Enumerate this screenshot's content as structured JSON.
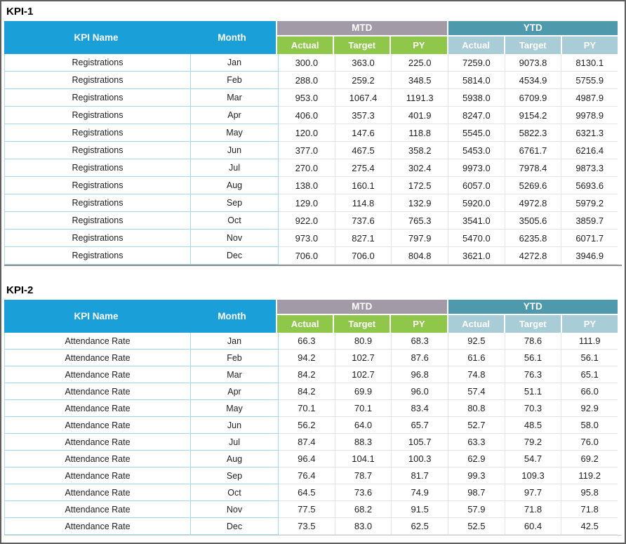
{
  "colors": {
    "header_blue": "#1a9fd8",
    "mtd_band_gray": "#a29aa6",
    "mtd_sub_green": "#8fc74b",
    "ytd_band_teal": "#4e9aac",
    "ytd_sub_light_teal": "#a9cdd6",
    "row_border_cyan": "#a3d8ea",
    "grid_light_gray": "#e4e4e4",
    "outer_frame_gray": "#5f5f5f"
  },
  "chart_data": [
    {
      "type": "table",
      "title": "KPI-1",
      "kpi_name": "Registrations",
      "col_headers": {
        "kpi_name": "KPI Name",
        "month": "Month",
        "groups": [
          {
            "label": "MTD",
            "sub": [
              "Actual",
              "Target",
              "PY"
            ]
          },
          {
            "label": "YTD",
            "sub": [
              "Actual",
              "Target",
              "PY"
            ]
          }
        ]
      },
      "rows": [
        {
          "month": "Jan",
          "values": [
            "300.0",
            "363.0",
            "225.0",
            "7259.0",
            "9073.8",
            "8130.1"
          ]
        },
        {
          "month": "Feb",
          "values": [
            "288.0",
            "259.2",
            "348.5",
            "5814.0",
            "4534.9",
            "5755.9"
          ]
        },
        {
          "month": "Mar",
          "values": [
            "953.0",
            "1067.4",
            "1191.3",
            "5938.0",
            "6709.9",
            "4987.9"
          ]
        },
        {
          "month": "Apr",
          "values": [
            "406.0",
            "357.3",
            "401.9",
            "8247.0",
            "9154.2",
            "9978.9"
          ]
        },
        {
          "month": "May",
          "values": [
            "120.0",
            "147.6",
            "118.8",
            "5545.0",
            "5822.3",
            "6321.3"
          ]
        },
        {
          "month": "Jun",
          "values": [
            "377.0",
            "467.5",
            "358.2",
            "5453.0",
            "6761.7",
            "6216.4"
          ]
        },
        {
          "month": "Jul",
          "values": [
            "270.0",
            "275.4",
            "302.4",
            "9973.0",
            "7978.4",
            "9873.3"
          ]
        },
        {
          "month": "Aug",
          "values": [
            "138.0",
            "160.1",
            "172.5",
            "6057.0",
            "5269.6",
            "5693.6"
          ]
        },
        {
          "month": "Sep",
          "values": [
            "129.0",
            "114.8",
            "132.9",
            "5920.0",
            "4972.8",
            "5979.2"
          ]
        },
        {
          "month": "Oct",
          "values": [
            "922.0",
            "737.6",
            "765.3",
            "3541.0",
            "3505.6",
            "3859.7"
          ]
        },
        {
          "month": "Nov",
          "values": [
            "973.0",
            "827.1",
            "797.9",
            "5470.0",
            "6235.8",
            "6071.7"
          ]
        },
        {
          "month": "Dec",
          "values": [
            "706.0",
            "706.0",
            "804.8",
            "3621.0",
            "4272.8",
            "3946.9"
          ]
        }
      ]
    },
    {
      "type": "table",
      "title": "KPI-2",
      "kpi_name": "Attendance Rate",
      "col_headers": {
        "kpi_name": "KPI Name",
        "month": "Month",
        "groups": [
          {
            "label": "MTD",
            "sub": [
              "Actual",
              "Target",
              "PY"
            ]
          },
          {
            "label": "YTD",
            "sub": [
              "Actual",
              "Target",
              "PY"
            ]
          }
        ]
      },
      "rows": [
        {
          "month": "Jan",
          "values": [
            "66.3",
            "80.9",
            "68.3",
            "92.5",
            "78.6",
            "111.9"
          ]
        },
        {
          "month": "Feb",
          "values": [
            "94.2",
            "102.7",
            "87.6",
            "61.6",
            "56.1",
            "56.1"
          ]
        },
        {
          "month": "Mar",
          "values": [
            "84.2",
            "102.7",
            "96.8",
            "74.8",
            "76.3",
            "65.1"
          ]
        },
        {
          "month": "Apr",
          "values": [
            "84.2",
            "69.9",
            "96.0",
            "57.4",
            "51.1",
            "66.0"
          ]
        },
        {
          "month": "May",
          "values": [
            "70.1",
            "70.1",
            "83.4",
            "80.8",
            "70.3",
            "92.9"
          ]
        },
        {
          "month": "Jun",
          "values": [
            "56.2",
            "64.0",
            "65.7",
            "52.7",
            "48.5",
            "58.0"
          ]
        },
        {
          "month": "Jul",
          "values": [
            "87.4",
            "88.3",
            "105.7",
            "63.3",
            "79.2",
            "76.0"
          ]
        },
        {
          "month": "Aug",
          "values": [
            "96.4",
            "104.1",
            "100.3",
            "62.9",
            "54.7",
            "69.2"
          ]
        },
        {
          "month": "Sep",
          "values": [
            "76.4",
            "78.7",
            "81.7",
            "99.3",
            "109.3",
            "119.2"
          ]
        },
        {
          "month": "Oct",
          "values": [
            "64.5",
            "73.6",
            "74.9",
            "98.7",
            "97.7",
            "95.8"
          ]
        },
        {
          "month": "Nov",
          "values": [
            "77.5",
            "68.2",
            "91.5",
            "57.9",
            "71.8",
            "71.8"
          ]
        },
        {
          "month": "Dec",
          "values": [
            "73.5",
            "83.0",
            "62.5",
            "52.5",
            "60.4",
            "42.5"
          ]
        }
      ]
    }
  ]
}
